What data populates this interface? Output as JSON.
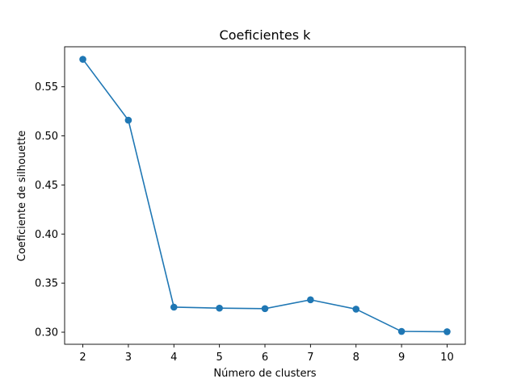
{
  "chart_data": {
    "type": "line",
    "title": "Coeficientes k",
    "xlabel": "Número de clusters",
    "ylabel": "Coeficiente de silhouette",
    "x": [
      2,
      3,
      4,
      5,
      6,
      7,
      8,
      9,
      10
    ],
    "series": [
      {
        "values": [
          0.578,
          0.516,
          0.3255,
          0.3245,
          0.324,
          0.333,
          0.3235,
          0.3008,
          0.3005
        ],
        "color": "#1f77b4",
        "marker": "circle"
      }
    ],
    "xlim": [
      1.6,
      10.4
    ],
    "ylim": [
      0.2877,
      0.5908
    ],
    "xticks": [
      2,
      3,
      4,
      5,
      6,
      7,
      8,
      9,
      10
    ],
    "yticks": [
      0.3,
      0.35,
      0.4,
      0.45,
      0.5,
      0.55
    ],
    "ytick_labels": [
      "0.30",
      "0.35",
      "0.40",
      "0.45",
      "0.50",
      "0.55"
    ],
    "grid": false,
    "legend": "none"
  }
}
